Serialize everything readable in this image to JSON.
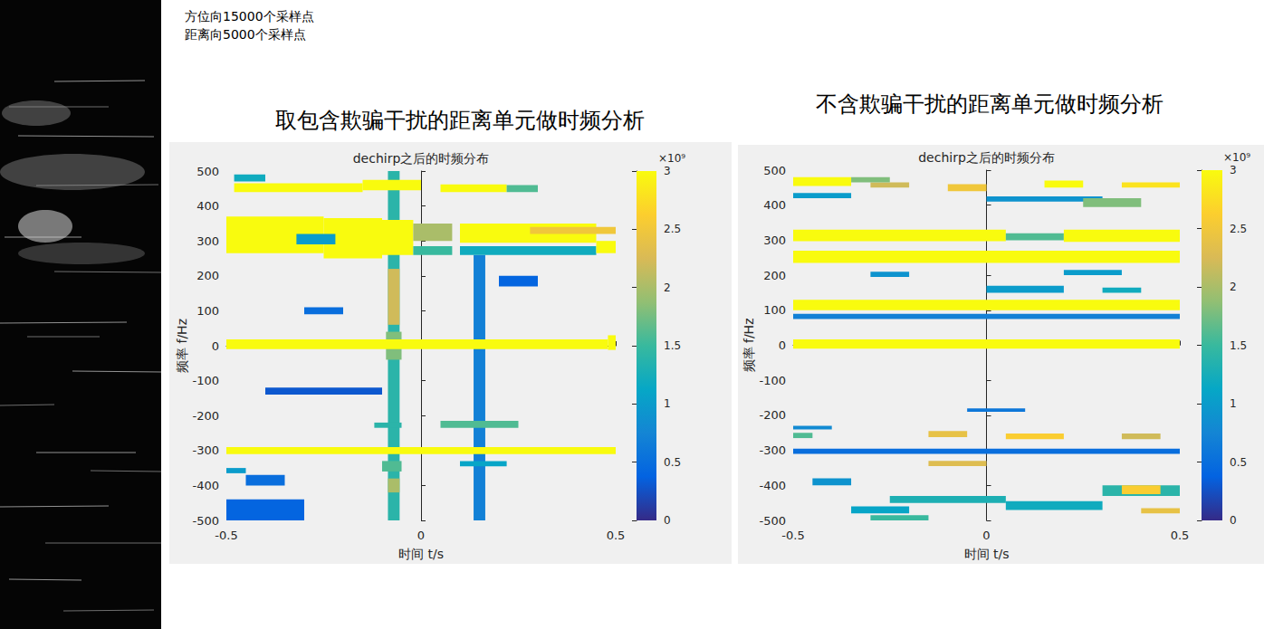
{
  "annotations": [
    "方位向15000个采样点",
    "距离向5000个采样点"
  ],
  "chart_data": [
    {
      "type": "heatmap",
      "panel_title": "取包含欺骗干扰的距离单元做时频分析",
      "title": "dechirp之后的时频分布",
      "xlabel": "时间 t/s",
      "ylabel": "频率 f/Hz",
      "xlim": [
        -0.5,
        0.5
      ],
      "xticks": [
        -0.5,
        0,
        0.5
      ],
      "ylim": [
        -500,
        500
      ],
      "yticks": [
        -500,
        -400,
        -300,
        -200,
        -100,
        0,
        100,
        200,
        300,
        400,
        500
      ],
      "grid": false,
      "colorbar": {
        "range": [
          0,
          3000000000.0
        ],
        "label": "×10⁹",
        "ticks": [
          0,
          {
            "value": 500000000.0,
            "label": "0.5"
          },
          {
            "value": 1000000000.0,
            "label": "1"
          },
          {
            "value": 1500000000.0,
            "label": "1.5"
          },
          {
            "value": 2000000000.0,
            "label": "2"
          },
          {
            "value": 2500000000.0,
            "label": "2.5"
          },
          {
            "value": 3000000000.0,
            "label": "3"
          }
        ]
      },
      "cells": [
        [
          -0.5,
          -0.3,
          -500,
          -440,
          400000000.0
        ],
        [
          -0.45,
          -0.35,
          -400,
          -370,
          500000000.0
        ],
        [
          -0.3,
          -0.2,
          90,
          110,
          500000000.0
        ],
        [
          0.2,
          0.3,
          170,
          200,
          400000000.0
        ],
        [
          -0.4,
          -0.1,
          -140,
          -120,
          300000000.0
        ],
        [
          -0.085,
          -0.055,
          -500,
          500,
          1400000000.0
        ],
        [
          -0.085,
          -0.055,
          60,
          220,
          2200000000.0
        ],
        [
          -0.085,
          -0.055,
          -420,
          -380,
          2000000000.0
        ],
        [
          -0.09,
          -0.05,
          -40,
          40,
          1800000000.0
        ],
        [
          0.135,
          0.165,
          -500,
          260,
          700000000.0
        ],
        [
          0.05,
          0.25,
          -235,
          -215,
          1600000000.0
        ],
        [
          -0.12,
          -0.05,
          -235,
          -220,
          1400000000.0
        ],
        [
          0.1,
          0.22,
          -345,
          -330,
          1100000000.0
        ],
        [
          -0.5,
          -0.45,
          -365,
          -350,
          1000000000.0
        ],
        [
          -0.1,
          -0.05,
          -360,
          -330,
          1600000000.0
        ],
        [
          -0.48,
          -0.15,
          440,
          465,
          3000000000.0
        ],
        [
          -0.15,
          0.0,
          445,
          475,
          3000000000.0
        ],
        [
          0.05,
          0.22,
          440,
          462,
          3000000000.0
        ],
        [
          0.22,
          0.3,
          440,
          460,
          1600000000.0
        ],
        [
          -0.48,
          -0.4,
          470,
          490,
          1200000000.0
        ],
        [
          -0.5,
          -0.25,
          265,
          370,
          3000000000.0
        ],
        [
          -0.25,
          -0.1,
          250,
          365,
          3000000000.0
        ],
        [
          -0.32,
          -0.22,
          290,
          320,
          1000000000.0
        ],
        [
          -0.1,
          -0.02,
          260,
          360,
          3000000000.0
        ],
        [
          -0.02,
          0.08,
          300,
          350,
          2000000000.0
        ],
        [
          0.1,
          0.45,
          295,
          350,
          3000000000.0
        ],
        [
          0.1,
          0.45,
          260,
          285,
          1200000000.0
        ],
        [
          0.45,
          0.5,
          265,
          300,
          3000000000.0
        ],
        [
          0.28,
          0.5,
          320,
          340,
          2500000000.0
        ],
        [
          -0.02,
          0.08,
          260,
          285,
          1500000000.0
        ],
        [
          -0.5,
          0.48,
          -10,
          18,
          3000000000.0
        ],
        [
          0.48,
          0.5,
          -12,
          30,
          3000000000.0
        ],
        [
          -0.5,
          0.5,
          -310,
          -290,
          3000000000.0
        ]
      ]
    },
    {
      "type": "heatmap",
      "panel_title": "不含欺骗干扰的距离单元做时频分析",
      "title": "dechirp之后的时频分布",
      "xlabel": "时间 t/s",
      "ylabel": "频率 f/Hz",
      "xlim": [
        -0.5,
        0.5
      ],
      "xticks": [
        -0.5,
        0,
        0.5
      ],
      "ylim": [
        -500,
        500
      ],
      "yticks": [
        -500,
        -400,
        -300,
        -200,
        -100,
        0,
        100,
        200,
        300,
        400,
        500
      ],
      "grid": false,
      "colorbar": {
        "range": [
          0,
          3000000000.0
        ],
        "label": "×10⁹",
        "ticks": [
          0,
          {
            "value": 500000000.0,
            "label": "0.5"
          },
          {
            "value": 1000000000.0,
            "label": "1"
          },
          {
            "value": 1500000000.0,
            "label": "1.5"
          },
          {
            "value": 2000000000.0,
            "label": "2"
          },
          {
            "value": 2500000000.0,
            "label": "2.5"
          },
          {
            "value": 3000000000.0,
            "label": "3"
          }
        ]
      },
      "cells": [
        [
          -0.5,
          0.5,
          75,
          90,
          700000000.0
        ],
        [
          0.0,
          0.2,
          150,
          170,
          1000000000.0
        ],
        [
          0.3,
          0.4,
          150,
          165,
          1200000000.0
        ],
        [
          -0.3,
          -0.2,
          195,
          210,
          900000000.0
        ],
        [
          0.2,
          0.35,
          200,
          215,
          1000000000.0
        ],
        [
          -0.5,
          0.5,
          -310,
          -295,
          500000000.0
        ],
        [
          -0.45,
          -0.35,
          -400,
          -380,
          900000000.0
        ],
        [
          -0.05,
          0.1,
          -190,
          -180,
          600000000.0
        ],
        [
          -0.5,
          -0.4,
          -240,
          -230,
          800000000.0
        ],
        [
          -0.25,
          0.05,
          -450,
          -430,
          1300000000.0
        ],
        [
          -0.35,
          -0.2,
          -480,
          -460,
          1100000000.0
        ],
        [
          0.05,
          0.3,
          -470,
          -445,
          1200000000.0
        ],
        [
          0.3,
          0.5,
          -430,
          -400,
          1400000000.0
        ],
        [
          0.35,
          0.45,
          -425,
          -400,
          2600000000.0
        ],
        [
          0.4,
          0.5,
          -480,
          -465,
          2400000000.0
        ],
        [
          -0.3,
          -0.15,
          -500,
          -485,
          1500000000.0
        ],
        [
          -0.5,
          -0.35,
          420,
          435,
          1000000000.0
        ],
        [
          0.0,
          0.3,
          410,
          425,
          900000000.0
        ],
        [
          0.25,
          0.4,
          395,
          420,
          1800000000.0
        ],
        [
          -0.15,
          -0.05,
          -262,
          -245,
          2400000000.0
        ],
        [
          0.05,
          0.2,
          -268,
          -252,
          2600000000.0
        ],
        [
          0.35,
          0.45,
          -268,
          -252,
          2200000000.0
        ],
        [
          -0.5,
          -0.45,
          -265,
          -250,
          1600000000.0
        ],
        [
          -0.15,
          0.0,
          -345,
          -330,
          2300000000.0
        ],
        [
          -0.5,
          0.5,
          -10,
          17,
          3000000000.0
        ],
        [
          -0.5,
          0.5,
          100,
          130,
          3000000000.0
        ],
        [
          -0.5,
          0.5,
          235,
          270,
          3000000000.0
        ],
        [
          -0.5,
          0.05,
          297,
          330,
          3000000000.0
        ],
        [
          0.05,
          0.2,
          300,
          320,
          1600000000.0
        ],
        [
          0.2,
          0.5,
          295,
          330,
          3000000000.0
        ],
        [
          -0.5,
          -0.35,
          455,
          480,
          3000000000.0
        ],
        [
          -0.3,
          -0.2,
          450,
          465,
          2200000000.0
        ],
        [
          -0.1,
          0.0,
          440,
          460,
          2500000000.0
        ],
        [
          0.15,
          0.25,
          450,
          470,
          3000000000.0
        ],
        [
          0.35,
          0.5,
          450,
          465,
          2800000000.0
        ],
        [
          -0.35,
          -0.25,
          465,
          480,
          1800000000.0
        ]
      ]
    }
  ]
}
